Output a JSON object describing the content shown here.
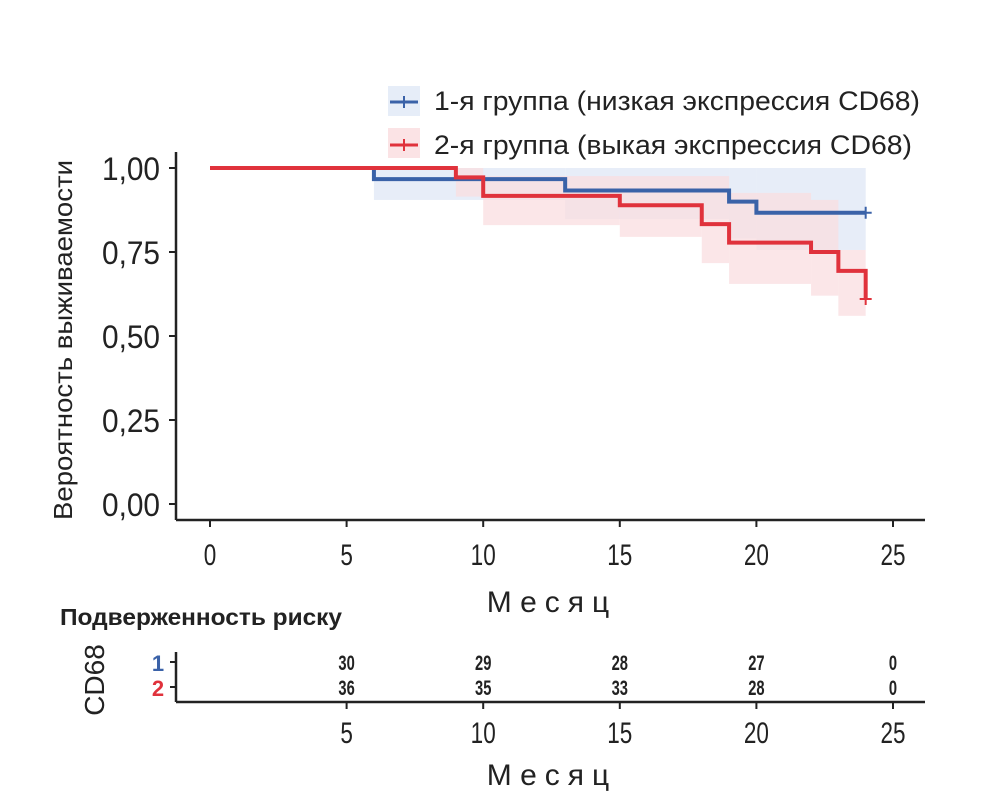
{
  "chart_data": {
    "type": "line",
    "subtype": "kaplan-meier",
    "xlabel": "Месяц",
    "ylabel": "Вероятность выживаемости",
    "xlim": [
      -1.2,
      26
    ],
    "ylim": [
      0,
      1
    ],
    "x_ticks": [
      0,
      5,
      10,
      15,
      20,
      25
    ],
    "y_ticks": [
      0,
      0.25,
      0.5,
      0.75,
      1.0
    ],
    "y_tick_labels": [
      "0,00",
      "0,25",
      "0,50",
      "0,75",
      "1,00"
    ],
    "legend_placement": "top-right",
    "series": [
      {
        "name": "1-я группа (низкая экспрессия CD68)",
        "color": "#3a62a8",
        "band_color": "#dfe7f5",
        "steps": [
          [
            0,
            1.0
          ],
          [
            6,
            0.967
          ],
          [
            13,
            0.933
          ],
          [
            19,
            0.9
          ],
          [
            20,
            0.867
          ]
        ],
        "end": 24,
        "censor": [
          [
            24,
            0.867
          ]
        ],
        "ci": [
          [
            0,
            1.0,
            1.0
          ],
          [
            6,
            0.905,
            1.0
          ],
          [
            13,
            0.848,
            1.0
          ],
          [
            19,
            0.79,
            1.0
          ],
          [
            20,
            0.756,
            1.0
          ]
        ]
      },
      {
        "name": "2-я группа (выкая экспрессия CD68)",
        "color": "#e0323c",
        "band_color": "#fadde0",
        "steps": [
          [
            0,
            1.0
          ],
          [
            9,
            0.972
          ],
          [
            10,
            0.917
          ],
          [
            15,
            0.889
          ],
          [
            18,
            0.833
          ],
          [
            19,
            0.778
          ],
          [
            22,
            0.75
          ],
          [
            23,
            0.694
          ],
          [
            24,
            0.61
          ]
        ],
        "end": 24,
        "censor": [
          [
            24,
            0.61
          ]
        ],
        "ci": [
          [
            0,
            1.0,
            1.0
          ],
          [
            9,
            0.915,
            1.0
          ],
          [
            10,
            0.83,
            0.976
          ],
          [
            15,
            0.795,
            0.976
          ],
          [
            18,
            0.717,
            0.976
          ],
          [
            19,
            0.655,
            0.926
          ],
          [
            22,
            0.62,
            0.905
          ],
          [
            23,
            0.56,
            0.756
          ]
        ]
      }
    ],
    "risk_table": {
      "title": "Подверженность риску",
      "strata_label": "CD68",
      "xlabel": "Месяц",
      "x_ticks": [
        5,
        10,
        15,
        20,
        25
      ],
      "rows": [
        {
          "label": "1",
          "color": "#3a62a8",
          "values": [
            30,
            29,
            28,
            27,
            0
          ]
        },
        {
          "label": "2",
          "color": "#e0323c",
          "values": [
            36,
            35,
            33,
            28,
            0
          ]
        }
      ]
    }
  }
}
